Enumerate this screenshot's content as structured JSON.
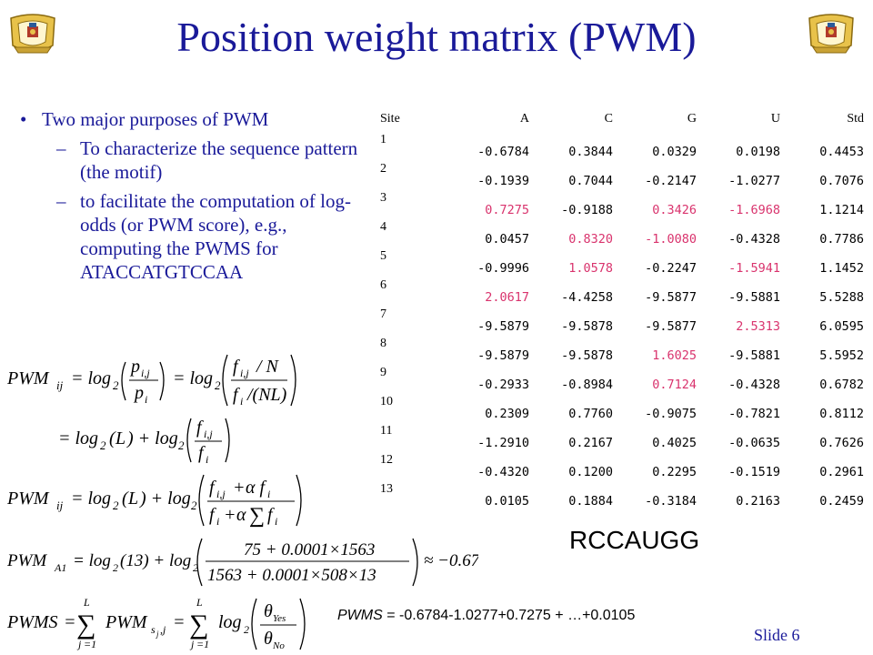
{
  "title": "Position weight matrix (PWM)",
  "bullets": {
    "main": "Two major purposes of PWM",
    "sub1": "To characterize the sequence pattern (the motif)",
    "sub2": "to facilitate the computation of log-odds (or PWM score), e.g., computing the PWMS for ATACCATGTCCAA"
  },
  "table": {
    "headers": [
      "Site",
      "A",
      "C",
      "G",
      "U",
      "Std"
    ],
    "rows": [
      {
        "site": "1",
        "values": [
          "-0.6784",
          "0.3844",
          "0.0329",
          "0.0198",
          "0.4453"
        ],
        "highlight": []
      },
      {
        "site": "2",
        "values": [
          "-0.1939",
          "0.7044",
          "-0.2147",
          "-1.0277",
          "0.7076"
        ],
        "highlight": []
      },
      {
        "site": "3",
        "values": [
          "0.7275",
          "-0.9188",
          "0.3426",
          "-1.6968",
          "1.1214"
        ],
        "highlight": [
          0,
          2,
          3
        ]
      },
      {
        "site": "4",
        "values": [
          "0.0457",
          "0.8320",
          "-1.0080",
          "-0.4328",
          "0.7786"
        ],
        "highlight": [
          1,
          2
        ]
      },
      {
        "site": "5",
        "values": [
          "-0.9996",
          "1.0578",
          "-0.2247",
          "-1.5941",
          "1.1452"
        ],
        "highlight": [
          1,
          3
        ]
      },
      {
        "site": "6",
        "values": [
          "2.0617",
          "-4.4258",
          "-9.5877",
          "-9.5881",
          "5.5288"
        ],
        "highlight": [
          0
        ]
      },
      {
        "site": "7",
        "values": [
          "-9.5879",
          "-9.5878",
          "-9.5877",
          "2.5313",
          "6.0595"
        ],
        "highlight": [
          3
        ]
      },
      {
        "site": "8",
        "values": [
          "-9.5879",
          "-9.5878",
          "1.6025",
          "-9.5881",
          "5.5952"
        ],
        "highlight": [
          2
        ]
      },
      {
        "site": "9",
        "values": [
          "-0.2933",
          "-0.8984",
          "0.7124",
          "-0.4328",
          "0.6782"
        ],
        "highlight": [
          2
        ]
      },
      {
        "site": "10",
        "values": [
          "0.2309",
          "0.7760",
          "-0.9075",
          "-0.7821",
          "0.8112"
        ],
        "highlight": []
      },
      {
        "site": "11",
        "values": [
          "-1.2910",
          "0.2167",
          "0.4025",
          "-0.0635",
          "0.7626"
        ],
        "highlight": []
      },
      {
        "site": "12",
        "values": [
          "-0.4320",
          "0.1200",
          "0.2295",
          "-0.1519",
          "0.2961"
        ],
        "highlight": []
      },
      {
        "site": "13",
        "values": [
          "0.0105",
          "0.1884",
          "-0.3184",
          "0.2163",
          "0.2459"
        ],
        "highlight": []
      }
    ]
  },
  "consensus": "RCCAUGG",
  "equations": {
    "eq1": "PWM_ij = log2( p_i,j / p_i ) = log2( (f_i,j / N) / (f_i / (NL)) )",
    "eq2": "= log2(L) + log2( f_i,j / f_i )",
    "eq3": "PWM_ij = log2(L) + log2( (f_i,j + α f_i) / (f_i + α Σ f_i) )",
    "eq4": "PWM_A1 = log2(13) + log2( (75 + 0.0001×1563) / (1563 + 0.0001×508×13) ) ≈ −0.67845",
    "eq5": "PWMS = Σ_{j=1..L} PWM_{s_j,j} = Σ_{j=1..L} log2( θ_Yes / θ_No )"
  },
  "pwms_label": "PWMS",
  "pwms_expression": " = -0.6784-1.0277+0.7275 + …+0.0105",
  "slide_number": "Slide 6",
  "colors": {
    "title": "#1a1a99",
    "highlight": "#d9336d"
  },
  "icons": [
    "crest-icon"
  ]
}
